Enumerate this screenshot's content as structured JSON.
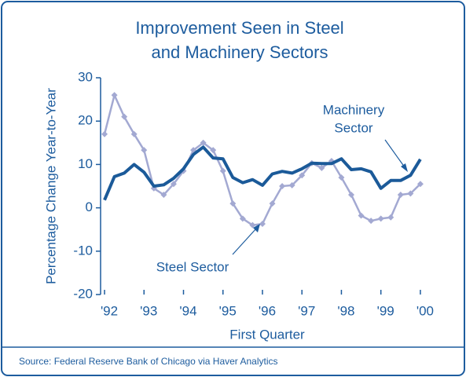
{
  "chart_data": {
    "type": "line",
    "title": [
      "Improvement Seen in Steel",
      "and Machinery Sectors"
    ],
    "y_label": "Percentage Change Year-to-Year",
    "x_label": "First Quarter",
    "source": "Source: Federal Reserve Bank of Chicago via Haver Analytics",
    "x": [
      1992,
      1992.25,
      1992.5,
      1992.75,
      1993,
      1993.25,
      1993.5,
      1993.75,
      1994,
      1994.25,
      1994.5,
      1994.75,
      1995,
      1995.25,
      1995.5,
      1995.75,
      1996,
      1996.25,
      1996.5,
      1996.75,
      1997,
      1997.25,
      1997.5,
      1997.75,
      1998,
      1998.25,
      1998.5,
      1998.75,
      1999,
      1999.25,
      1999.5,
      1999.75,
      2000
    ],
    "series": [
      {
        "name": "Steel Sector",
        "color": "#a3a9d2",
        "marker": "diamond",
        "values": [
          17,
          26,
          21,
          17,
          13.3,
          4.5,
          3,
          5.5,
          8.5,
          13.3,
          15,
          13.3,
          8.5,
          1,
          -2.5,
          -4,
          -3.7,
          1,
          5,
          5.2,
          7.5,
          10.3,
          9.2,
          10.8,
          7,
          3,
          -1.8,
          -3,
          -2.5,
          -2.2,
          3,
          3.3,
          5.5
        ]
      },
      {
        "name": "Machinery Sector",
        "color": "#1b5a99",
        "values": [
          1.8,
          7.2,
          8,
          10,
          8.2,
          5,
          5.3,
          6.8,
          9,
          12.3,
          14,
          11.5,
          11.3,
          7,
          5.8,
          6.5,
          5.2,
          7.8,
          8.4,
          8,
          9,
          10.3,
          10.2,
          10.2,
          11.3,
          8.8,
          9,
          8.3,
          4.5,
          6.3,
          6.3,
          7.5,
          11.2
        ]
      }
    ],
    "annotations": [
      {
        "lines": [
          "Machinery",
          "Sector"
        ],
        "series": 1
      },
      {
        "lines": [
          "Steel Sector"
        ],
        "series": 0
      }
    ],
    "xlim": [
      1991.9,
      2000.3
    ],
    "ylim": [
      -20,
      30
    ],
    "yticks": [
      -20,
      -10,
      0,
      10,
      20,
      30
    ],
    "xticks": [
      {
        "value": 1992,
        "label": "'92"
      },
      {
        "value": 1993,
        "label": "'93"
      },
      {
        "value": 1994,
        "label": "'94"
      },
      {
        "value": 1995,
        "label": "'95"
      },
      {
        "value": 1996,
        "label": "'96"
      },
      {
        "value": 1997,
        "label": "'97"
      },
      {
        "value": 1998,
        "label": "'98"
      },
      {
        "value": 1999,
        "label": "'99"
      },
      {
        "value": 2000,
        "label": "'00"
      }
    ],
    "grid": false
  }
}
